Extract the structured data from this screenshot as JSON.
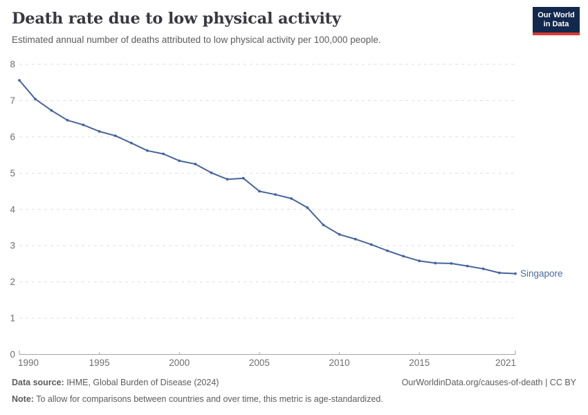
{
  "header": {
    "title": "Death rate due to low physical activity",
    "subtitle": "Estimated annual number of deaths attributed to low physical activity per 100,000 people."
  },
  "logo": {
    "line1": "Our World",
    "line2": "in Data"
  },
  "chart_data": {
    "type": "line",
    "title": "Death rate due to low physical activity",
    "xlabel": "",
    "ylabel": "",
    "xlim": [
      1990,
      2021
    ],
    "ylim": [
      0,
      8
    ],
    "x_ticks": [
      1990,
      1995,
      2000,
      2005,
      2010,
      2015,
      2021
    ],
    "y_ticks": [
      0,
      1,
      2,
      3,
      4,
      5,
      6,
      7,
      8
    ],
    "grid": "horizontal-dashed",
    "legend_position": "end-of-line-label",
    "x": [
      1990,
      1991,
      1992,
      1993,
      1994,
      1995,
      1996,
      1997,
      1998,
      1999,
      2000,
      2001,
      2002,
      2003,
      2004,
      2005,
      2006,
      2007,
      2008,
      2009,
      2010,
      2011,
      2012,
      2013,
      2014,
      2015,
      2016,
      2017,
      2018,
      2019,
      2020,
      2021
    ],
    "series": [
      {
        "name": "Singapore",
        "values": [
          7.56,
          7.04,
          6.73,
          6.46,
          6.33,
          6.15,
          6.03,
          5.83,
          5.62,
          5.53,
          5.34,
          5.25,
          5.01,
          4.83,
          4.86,
          4.5,
          4.41,
          4.3,
          4.05,
          3.57,
          3.31,
          3.18,
          3.03,
          2.86,
          2.71,
          2.58,
          2.52,
          2.51,
          2.44,
          2.36,
          2.25,
          2.23
        ]
      }
    ]
  },
  "colors": {
    "line": "#45649e",
    "series_label": "#4a6ba3",
    "grid": "#dddddd",
    "axis": "#a3a3a3",
    "tick_text": "#6e6e73",
    "title_text": "#383840",
    "subtitle_text": "#5b5b5b",
    "logo_bg": "#12294d",
    "logo_bar": "#dd392f"
  },
  "footer": {
    "datasource_label": "Data source:",
    "datasource_text": " IHME, Global Burden of Disease (2024)",
    "attribution": "OurWorldinData.org/causes-of-death | CC BY",
    "note_label": "Note:",
    "note_text": " To allow for comparisons between countries and over time, this metric is age-standardized."
  }
}
